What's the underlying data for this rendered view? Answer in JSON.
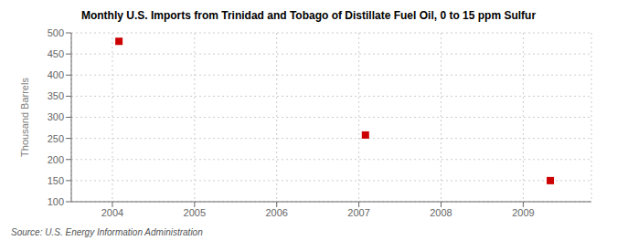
{
  "chart_data": {
    "type": "scatter",
    "title": "Monthly U.S. Imports from Trinidad and Tobago of Distillate Fuel Oil, 0 to 15 ppm Sulfur",
    "ylabel": "Thousand Barrels",
    "annotations": [
      "Source: U.S. Energy Information Administration"
    ],
    "x": [
      2004.08,
      2007.08,
      2009.33
    ],
    "values": [
      480,
      258,
      150
    ],
    "color": "#cc0000",
    "marker": "square",
    "xlim": [
      2003.5,
      2009.83
    ],
    "ylim": [
      100,
      500
    ],
    "xticks": [
      2004,
      2005,
      2006,
      2007,
      2008,
      2009
    ],
    "yticks": [
      100,
      150,
      200,
      250,
      300,
      350,
      400,
      450,
      500
    ],
    "grid": true
  }
}
